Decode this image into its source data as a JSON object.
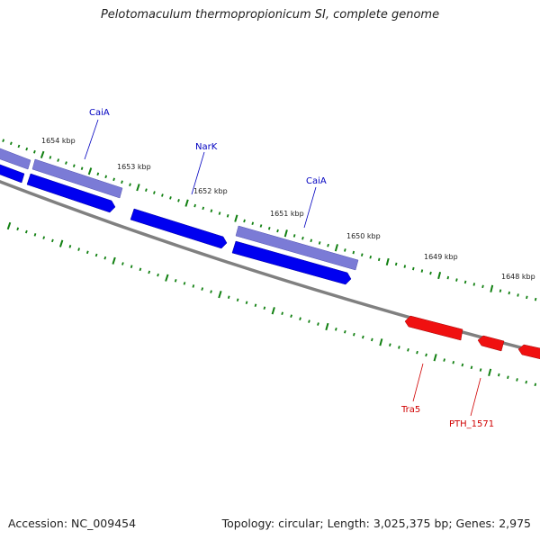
{
  "title": "Pelotomaculum thermopropionicum SI, complete genome",
  "footer": {
    "accession": "Accession: NC_009454",
    "summary": "Topology: circular; Length: 3,025,375 bp; Genes: 2,975"
  },
  "colors": {
    "backbone": "#808080",
    "forward_gene": "#7070d0",
    "reverse_gene": "#0000f0",
    "other_gene": "#f01010",
    "tick": "#118011",
    "blue_label": "#0000c0",
    "red_label": "#d00000"
  },
  "ticks": [
    {
      "label": "1654 kbp"
    },
    {
      "label": "1653 kbp"
    },
    {
      "label": "1652 kbp"
    },
    {
      "label": "1651 kbp"
    },
    {
      "label": "1650 kbp"
    },
    {
      "label": "1649 kbp"
    },
    {
      "label": "1648 kbp"
    }
  ],
  "gene_labels": [
    {
      "name": "CaiA"
    },
    {
      "name": "NarK"
    },
    {
      "name": "CaiA"
    },
    {
      "name": "Tra5"
    },
    {
      "name": "PTH_1571"
    }
  ]
}
